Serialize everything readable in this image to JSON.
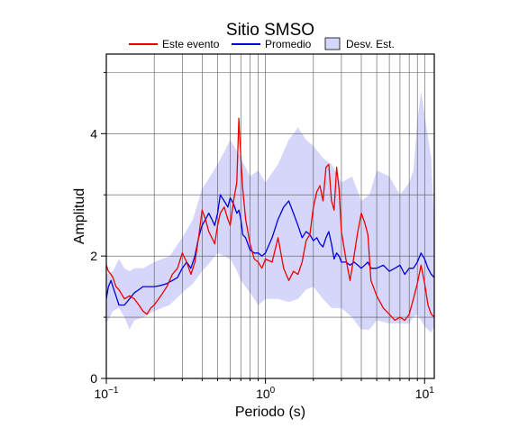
{
  "chart_data": {
    "type": "line",
    "title": "Sitio SMSO",
    "xlabel": "Periodo (s)",
    "ylabel": "Amplitud",
    "xscale": "log",
    "xlim": [
      0.1,
      11.5
    ],
    "ylim": [
      0,
      5.3
    ],
    "x_ticks": [
      {
        "value": 0.1,
        "base": "10",
        "exp": "−1"
      },
      {
        "value": 1,
        "base": "10",
        "exp": "0"
      },
      {
        "value": 10,
        "base": "10",
        "exp": "1"
      }
    ],
    "y_ticks": [
      0,
      2,
      4
    ],
    "grid": true,
    "legend_position": "top",
    "legend": {
      "este": "Este evento",
      "promedio": "Promedio",
      "desv": "Desv. Est."
    },
    "colors": {
      "este": "#ee0000",
      "promedio": "#0000dd",
      "band": "#d6d6fb"
    },
    "series": [
      {
        "name": "Este evento",
        "x": [
          0.1,
          0.103,
          0.107,
          0.11,
          0.115,
          0.12,
          0.13,
          0.14,
          0.15,
          0.16,
          0.17,
          0.18,
          0.19,
          0.2,
          0.22,
          0.24,
          0.26,
          0.28,
          0.3,
          0.32,
          0.34,
          0.36,
          0.38,
          0.4,
          0.42,
          0.44,
          0.46,
          0.48,
          0.5,
          0.52,
          0.55,
          0.58,
          0.6,
          0.63,
          0.66,
          0.68,
          0.7,
          0.72,
          0.75,
          0.8,
          0.85,
          0.9,
          0.95,
          1.0,
          1.1,
          1.2,
          1.3,
          1.4,
          1.5,
          1.6,
          1.7,
          1.8,
          1.9,
          2.0,
          2.1,
          2.2,
          2.3,
          2.4,
          2.5,
          2.6,
          2.7,
          2.8,
          2.9,
          3.0,
          3.2,
          3.4,
          3.6,
          3.8,
          4.0,
          4.2,
          4.4,
          4.6,
          5.0,
          5.5,
          6.0,
          6.5,
          7.0,
          7.5,
          8.0,
          8.5,
          9.0,
          9.5,
          10.0,
          10.5,
          11.0,
          11.5
        ],
        "values": [
          1.85,
          1.75,
          1.7,
          1.65,
          1.5,
          1.45,
          1.3,
          1.35,
          1.3,
          1.2,
          1.1,
          1.05,
          1.15,
          1.2,
          1.35,
          1.5,
          1.7,
          1.8,
          2.05,
          1.9,
          1.7,
          1.9,
          2.3,
          2.75,
          2.6,
          2.4,
          2.3,
          2.2,
          2.5,
          2.7,
          2.8,
          2.6,
          2.5,
          2.9,
          3.2,
          4.25,
          3.6,
          3.1,
          2.6,
          2.2,
          1.95,
          1.9,
          1.8,
          1.95,
          1.9,
          2.3,
          1.8,
          1.6,
          1.75,
          1.7,
          1.9,
          2.25,
          2.35,
          2.8,
          3.05,
          3.15,
          2.9,
          3.45,
          3.5,
          2.9,
          2.75,
          3.45,
          3.1,
          2.4,
          1.95,
          1.6,
          2.0,
          2.4,
          2.7,
          2.55,
          2.35,
          1.6,
          1.35,
          1.15,
          1.05,
          0.95,
          1.0,
          0.95,
          1.05,
          1.3,
          1.55,
          1.85,
          1.55,
          1.2,
          1.05,
          1.0
        ]
      },
      {
        "name": "Promedio",
        "x": [
          0.1,
          0.103,
          0.107,
          0.11,
          0.115,
          0.12,
          0.13,
          0.14,
          0.15,
          0.16,
          0.17,
          0.18,
          0.19,
          0.2,
          0.22,
          0.24,
          0.26,
          0.28,
          0.3,
          0.32,
          0.34,
          0.36,
          0.38,
          0.4,
          0.42,
          0.44,
          0.46,
          0.48,
          0.5,
          0.52,
          0.55,
          0.58,
          0.6,
          0.63,
          0.66,
          0.68,
          0.7,
          0.72,
          0.75,
          0.8,
          0.85,
          0.9,
          0.95,
          1.0,
          1.1,
          1.2,
          1.3,
          1.4,
          1.5,
          1.6,
          1.7,
          1.8,
          1.9,
          2.0,
          2.1,
          2.2,
          2.3,
          2.4,
          2.5,
          2.6,
          2.7,
          2.8,
          2.9,
          3.0,
          3.2,
          3.4,
          3.6,
          3.8,
          4.0,
          4.2,
          4.4,
          4.6,
          5.0,
          5.5,
          6.0,
          6.5,
          7.0,
          7.5,
          8.0,
          8.5,
          9.0,
          9.5,
          10.0,
          10.5,
          11.0,
          11.5
        ],
        "values": [
          1.3,
          1.5,
          1.6,
          1.5,
          1.35,
          1.2,
          1.2,
          1.3,
          1.4,
          1.45,
          1.5,
          1.5,
          1.5,
          1.5,
          1.52,
          1.55,
          1.6,
          1.65,
          1.8,
          1.9,
          1.8,
          2.0,
          2.3,
          2.5,
          2.6,
          2.7,
          2.6,
          2.5,
          2.7,
          3.0,
          2.9,
          2.8,
          2.95,
          2.85,
          2.7,
          2.75,
          2.6,
          2.35,
          2.3,
          2.1,
          2.05,
          2.05,
          2.0,
          2.05,
          2.3,
          2.6,
          2.8,
          2.9,
          2.7,
          2.5,
          2.3,
          2.4,
          2.35,
          2.25,
          2.3,
          2.2,
          2.15,
          2.3,
          2.4,
          2.2,
          1.95,
          2.05,
          2.0,
          1.9,
          1.9,
          1.85,
          1.9,
          1.85,
          1.8,
          1.85,
          1.9,
          1.8,
          1.8,
          1.85,
          1.75,
          1.8,
          1.85,
          1.7,
          1.8,
          1.8,
          1.9,
          2.05,
          1.95,
          1.8,
          1.7,
          1.65
        ]
      },
      {
        "name": "Desv. Est.",
        "x": [
          0.1,
          0.11,
          0.12,
          0.13,
          0.14,
          0.15,
          0.17,
          0.2,
          0.25,
          0.3,
          0.35,
          0.4,
          0.45,
          0.5,
          0.55,
          0.6,
          0.65,
          0.7,
          0.8,
          0.9,
          1.0,
          1.2,
          1.4,
          1.6,
          1.8,
          2.0,
          2.3,
          2.6,
          3.0,
          3.5,
          4.0,
          4.5,
          5.0,
          6.0,
          7.0,
          8.0,
          8.5,
          9.0,
          9.5,
          10.0,
          11.0,
          11.5
        ],
        "upper": [
          1.7,
          1.75,
          1.95,
          1.8,
          1.75,
          1.8,
          1.8,
          1.9,
          2.0,
          2.3,
          2.6,
          3.1,
          3.3,
          3.5,
          3.7,
          3.9,
          3.75,
          3.6,
          3.3,
          3.4,
          3.2,
          3.5,
          3.9,
          4.1,
          3.9,
          3.8,
          3.6,
          3.5,
          3.2,
          3.3,
          2.9,
          3.0,
          3.4,
          3.3,
          3.0,
          3.2,
          3.4,
          4.2,
          4.7,
          4.3,
          3.6,
          2.5
        ],
        "lower": [
          0.9,
          1.1,
          1.15,
          1.0,
          0.8,
          0.95,
          1.0,
          1.1,
          1.2,
          1.4,
          1.55,
          1.75,
          1.9,
          2.05,
          2.0,
          1.95,
          1.8,
          1.6,
          1.4,
          1.2,
          1.3,
          1.3,
          1.25,
          1.3,
          1.45,
          1.5,
          1.3,
          1.15,
          1.15,
          1.0,
          0.8,
          0.8,
          0.95,
          0.9,
          0.9,
          0.9,
          1.0,
          1.05,
          0.95,
          0.85,
          0.75,
          0.85
        ]
      }
    ]
  }
}
